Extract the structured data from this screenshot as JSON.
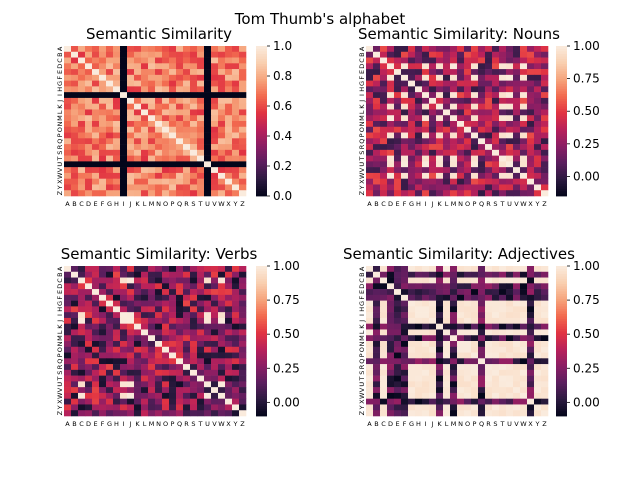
{
  "figure": {
    "suptitle": "Tom Thumb's alphabet"
  },
  "colormap_stops": [
    "#03051a",
    "#2b1a3f",
    "#5a1e5e",
    "#8a1e64",
    "#b8215b",
    "#e13342",
    "#f26a4f",
    "#f6a47c",
    "#f9cfb0",
    "#faebdd"
  ],
  "colors": {
    "separator": "#03051a",
    "background": "#ffffff"
  },
  "chart_data": [
    {
      "type": "heatmap",
      "title": "Semantic Similarity",
      "categories": [
        "A",
        "B",
        "C",
        "D",
        "E",
        "F",
        "G",
        "H",
        "I",
        "J",
        "K",
        "L",
        "M",
        "N",
        "O",
        "P",
        "Q",
        "R",
        "S",
        "T",
        "U",
        "V",
        "W",
        "X",
        "Y",
        "Z"
      ],
      "zero_rows": [
        "I",
        "U"
      ],
      "zero_cols": [
        "I",
        "U"
      ],
      "value_range": [
        0.55,
        0.85
      ],
      "diagonal": 1.0,
      "colorbar": {
        "vmin": 0.0,
        "vmax": 1.0,
        "ticks": [
          "0.0",
          "0.2",
          "0.4",
          "0.6",
          "0.8",
          "1.0"
        ],
        "tick_values": [
          0,
          0.2,
          0.4,
          0.6,
          0.8,
          1.0
        ]
      }
    },
    {
      "type": "heatmap",
      "title": "Semantic Similarity: Nouns",
      "categories": [
        "A",
        "B",
        "C",
        "D",
        "E",
        "F",
        "G",
        "H",
        "I",
        "J",
        "K",
        "L",
        "M",
        "N",
        "O",
        "P",
        "Q",
        "R",
        "S",
        "T",
        "U",
        "V",
        "W",
        "X",
        "Y",
        "Z"
      ],
      "high_rows": [
        "D",
        "F",
        "I",
        "K",
        "M",
        "P",
        "T",
        "U",
        "W"
      ],
      "value_range": [
        0.0,
        0.55
      ],
      "diagonal": 1.0,
      "colorbar": {
        "vmin": -0.15,
        "vmax": 1.0,
        "ticks": [
          "0.00",
          "0.25",
          "0.50",
          "0.75",
          "1.00"
        ],
        "tick_values": [
          0,
          0.25,
          0.5,
          0.75,
          1.0
        ]
      }
    },
    {
      "type": "heatmap",
      "title": "Semantic Similarity: Verbs",
      "categories": [
        "A",
        "B",
        "C",
        "D",
        "E",
        "F",
        "G",
        "H",
        "I",
        "J",
        "K",
        "L",
        "M",
        "N",
        "O",
        "P",
        "Q",
        "R",
        "S",
        "T",
        "U",
        "V",
        "W",
        "X",
        "Y",
        "Z"
      ],
      "high_rows": [
        "C",
        "I",
        "J",
        "U",
        "W"
      ],
      "value_range": [
        -0.05,
        0.55
      ],
      "diagonal": 1.0,
      "colorbar": {
        "vmin": -0.1,
        "vmax": 1.0,
        "ticks": [
          "0.00",
          "0.25",
          "0.50",
          "0.75",
          "1.00"
        ],
        "tick_values": [
          0,
          0.25,
          0.5,
          0.75,
          1.0
        ]
      }
    },
    {
      "type": "heatmap",
      "title": "Semantic Similarity: Adjectives",
      "categories": [
        "A",
        "B",
        "C",
        "D",
        "E",
        "F",
        "G",
        "H",
        "I",
        "J",
        "K",
        "L",
        "M",
        "N",
        "O",
        "P",
        "Q",
        "R",
        "S",
        "T",
        "U",
        "V",
        "W",
        "X",
        "Y",
        "Z"
      ],
      "high_rows": [
        "A",
        "C",
        "G",
        "H",
        "I",
        "J",
        "L",
        "N",
        "O",
        "P",
        "R",
        "S",
        "T",
        "U",
        "V",
        "W",
        "Y",
        "Z"
      ],
      "value_range": [
        -0.1,
        0.3
      ],
      "diagonal": 1.0,
      "colorbar": {
        "vmin": -0.1,
        "vmax": 1.0,
        "ticks": [
          "0.00",
          "0.25",
          "0.50",
          "0.75",
          "1.00"
        ],
        "tick_values": [
          0,
          0.25,
          0.5,
          0.75,
          1.0
        ]
      }
    }
  ]
}
